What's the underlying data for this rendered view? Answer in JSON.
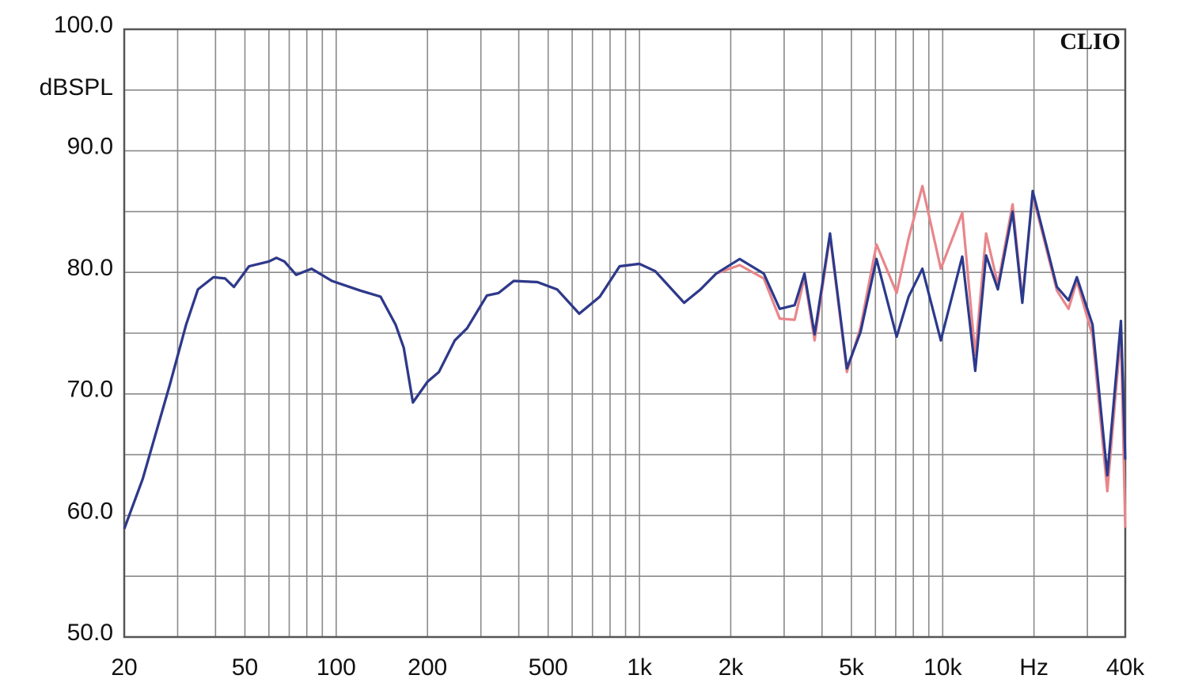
{
  "chart_data": {
    "type": "line",
    "ylabel": "dBSPL",
    "watermark": "CLIO",
    "xscale": "log",
    "grid": true,
    "xlim": [
      20,
      40000
    ],
    "ylim": [
      50,
      100
    ],
    "xticks": [
      20,
      50,
      100,
      200,
      500,
      {
        "value": 1000,
        "label": "1k"
      },
      {
        "value": 2000,
        "label": "2k"
      },
      {
        "value": 5000,
        "label": "5k"
      },
      {
        "value": 10000,
        "label": "10k"
      },
      {
        "value": 20000,
        "label": "Hz"
      },
      {
        "value": 40000,
        "label": "40k"
      }
    ],
    "xminor": [
      30,
      40,
      60,
      70,
      80,
      90,
      300,
      400,
      600,
      700,
      800,
      900,
      3000,
      4000,
      6000,
      7000,
      8000,
      9000,
      30000
    ],
    "yticks": [
      {
        "value": 50,
        "label": "50.0"
      },
      {
        "value": 60,
        "label": "60.0"
      },
      {
        "value": 70,
        "label": "70.0"
      },
      {
        "value": 80,
        "label": "80.0"
      },
      {
        "value": 90,
        "label": "90.0"
      },
      {
        "value": 100,
        "label": "100.0"
      }
    ],
    "yminor": [
      55,
      65,
      75,
      85,
      95
    ],
    "x": [
      20,
      23,
      28.3,
      32,
      35,
      39.4,
      43,
      46,
      51.6,
      60,
      63.5,
      67.5,
      73.8,
      83,
      96.8,
      120,
      140,
      157,
      167,
      179,
      200,
      218,
      246,
      270,
      314,
      343,
      385,
      461,
      535,
      633,
      740,
      860,
      1000,
      1127,
      1404,
      1590,
      1790,
      2140,
      2570,
      2900,
      3250,
      3500,
      3780,
      4250,
      4830,
      5360,
      6050,
      7050,
      7720,
      8570,
      9860,
      11600,
      12800,
      13900,
      15200,
      17000,
      18300,
      19800,
      23800,
      26000,
      27700,
      31200,
      34900,
      38700,
      40000
    ],
    "series": [
      {
        "color": "#e8868a",
        "values": [
          58.9,
          63.0,
          70.8,
          75.7,
          78.6,
          79.6,
          79.5,
          78.8,
          80.5,
          80.9,
          81.2,
          80.9,
          79.8,
          80.3,
          79.3,
          78.5,
          78.0,
          75.7,
          73.8,
          69.3,
          71.0,
          71.8,
          74.4,
          75.4,
          78.1,
          78.3,
          79.3,
          79.2,
          78.6,
          76.6,
          78.0,
          80.5,
          80.7,
          80.1,
          77.5,
          78.6,
          79.9,
          80.6,
          79.5,
          76.2,
          76.1,
          79.6,
          74.4,
          83.0,
          71.8,
          75.5,
          82.3,
          78.3,
          82.8,
          87.1,
          80.3,
          84.9,
          73.2,
          83.2,
          79.0,
          85.6,
          77.8,
          86.4,
          78.5,
          77.0,
          79.3,
          74.8,
          62.0,
          75.0,
          59.0
        ]
      },
      {
        "color": "#2b3a8c",
        "values": [
          58.9,
          63.0,
          70.8,
          75.7,
          78.6,
          79.6,
          79.5,
          78.8,
          80.5,
          80.9,
          81.2,
          80.9,
          79.8,
          80.3,
          79.3,
          78.5,
          78.0,
          75.7,
          73.8,
          69.3,
          71.0,
          71.8,
          74.4,
          75.4,
          78.1,
          78.3,
          79.3,
          79.2,
          78.6,
          76.6,
          78.0,
          80.5,
          80.7,
          80.1,
          77.5,
          78.6,
          79.9,
          81.1,
          79.9,
          77.0,
          77.3,
          79.9,
          74.9,
          83.2,
          72.1,
          75.1,
          81.1,
          74.7,
          78.0,
          80.3,
          74.4,
          81.3,
          71.9,
          81.4,
          78.6,
          85.0,
          77.5,
          86.7,
          78.8,
          77.7,
          79.6,
          75.7,
          63.3,
          76.0,
          64.6
        ]
      }
    ]
  }
}
